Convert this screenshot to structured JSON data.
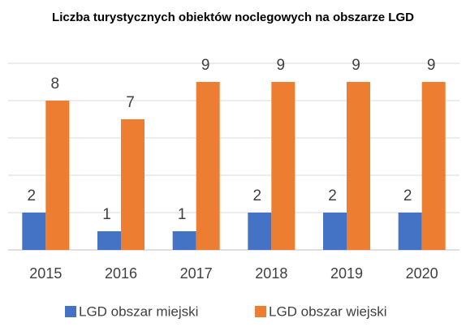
{
  "chart_data": {
    "type": "bar",
    "title": "Liczba turystycznych obiektów noclegowych na obszarze LGD",
    "categories": [
      "2015",
      "2016",
      "2017",
      "2018",
      "2019",
      "2020"
    ],
    "series": [
      {
        "name": "LGD obszar miejski",
        "color": "#4472c4",
        "values": [
          2,
          1,
          1,
          2,
          2,
          2
        ]
      },
      {
        "name": "LGD obszar wiejski",
        "color": "#ed7d31",
        "values": [
          8,
          7,
          9,
          9,
          9,
          9
        ]
      }
    ],
    "ylim": [
      0,
      10
    ],
    "yticks": [
      0,
      2,
      4,
      6,
      8,
      10
    ],
    "grid": true,
    "legend": "bottom"
  }
}
